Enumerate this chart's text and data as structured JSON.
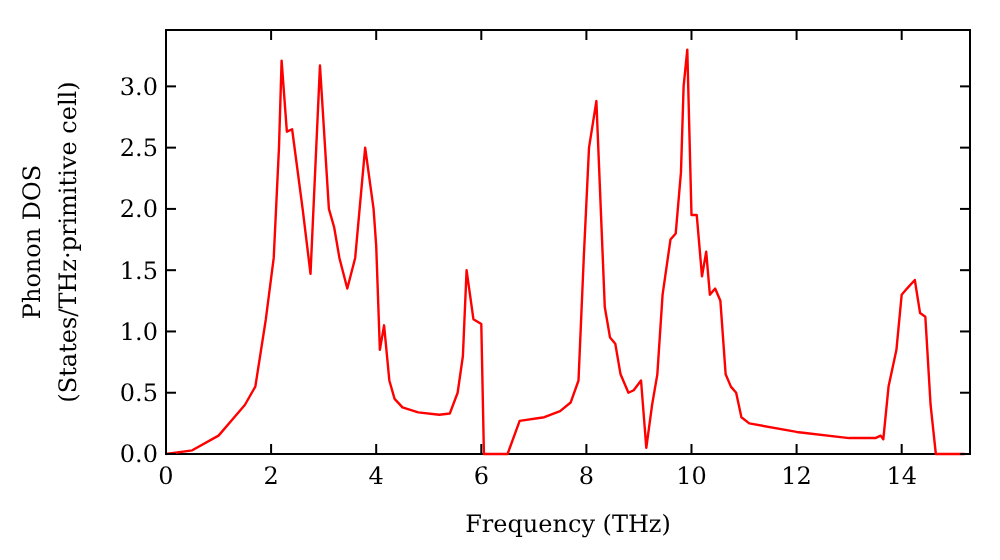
{
  "chart_data": {
    "type": "line",
    "xlabel": "Frequency (THz)",
    "ylabel": "Phonon DOS\n(States/THz·primitive cell)",
    "xlim": [
      0,
      15.3
    ],
    "ylim": [
      0,
      3.46
    ],
    "xticks": [
      0,
      2,
      4,
      6,
      8,
      10,
      12,
      14
    ],
    "yticks": [
      {
        "value": 0,
        "label": "0.0"
      },
      {
        "value": 0.5,
        "label": "0.5"
      },
      {
        "value": 1,
        "label": "1.0"
      },
      {
        "value": 1.5,
        "label": "1.5"
      },
      {
        "value": 2,
        "label": "2.0"
      },
      {
        "value": 2.5,
        "label": "2.5"
      },
      {
        "value": 3,
        "label": "3.0"
      }
    ],
    "grid": false,
    "marker": "none",
    "line_style": "solid",
    "series": [
      {
        "color": "#ff0000",
        "x": [
          0,
          0.5,
          1,
          1.3,
          1.5,
          1.7,
          1.9,
          2.05,
          2.15,
          2.2,
          2.3,
          2.4,
          2.6,
          2.75,
          2.93,
          3.1,
          3.2,
          3.3,
          3.45,
          3.6,
          3.79,
          3.95,
          4.0,
          4.07,
          4.15,
          4.25,
          4.35,
          4.5,
          4.8,
          5.2,
          5.4,
          5.55,
          5.65,
          5.72,
          5.85,
          6.0,
          6.05,
          6.5,
          6.73,
          7.2,
          7.5,
          7.7,
          7.85,
          7.95,
          8.05,
          8.19,
          8.35,
          8.45,
          8.55,
          8.65,
          8.8,
          8.9,
          9.04,
          9.14,
          9.25,
          9.35,
          9.45,
          9.6,
          9.7,
          9.8,
          9.85,
          9.92,
          10.0,
          10.1,
          10.2,
          10.28,
          10.35,
          10.45,
          10.55,
          10.65,
          10.75,
          10.85,
          10.95,
          11.1,
          12,
          13,
          13.5,
          13.6,
          13.65,
          13.75,
          13.9,
          14.0,
          14.1,
          14.25,
          14.35,
          14.45,
          14.55,
          14.65,
          15.2
        ],
        "values": [
          0,
          0.03,
          0.15,
          0.3,
          0.4,
          0.55,
          1.1,
          1.6,
          2.5,
          3.21,
          2.63,
          2.65,
          2.0,
          1.47,
          3.17,
          2.0,
          1.85,
          1.6,
          1.35,
          1.6,
          2.5,
          2.0,
          1.7,
          0.85,
          1.05,
          0.6,
          0.45,
          0.38,
          0.34,
          0.32,
          0.33,
          0.5,
          0.8,
          1.5,
          1.1,
          1.06,
          0,
          0,
          0.27,
          0.3,
          0.35,
          0.42,
          0.6,
          1.6,
          2.5,
          2.88,
          1.2,
          0.95,
          0.9,
          0.65,
          0.5,
          0.52,
          0.6,
          0.05,
          0.4,
          0.65,
          1.3,
          1.75,
          1.8,
          2.3,
          3.0,
          3.3,
          1.95,
          1.95,
          1.45,
          1.65,
          1.3,
          1.35,
          1.25,
          0.65,
          0.55,
          0.5,
          0.3,
          0.25,
          0.18,
          0.13,
          0.13,
          0.15,
          0.12,
          0.55,
          0.85,
          1.3,
          1.35,
          1.42,
          1.15,
          1.12,
          0.4,
          0,
          0
        ]
      }
    ]
  }
}
